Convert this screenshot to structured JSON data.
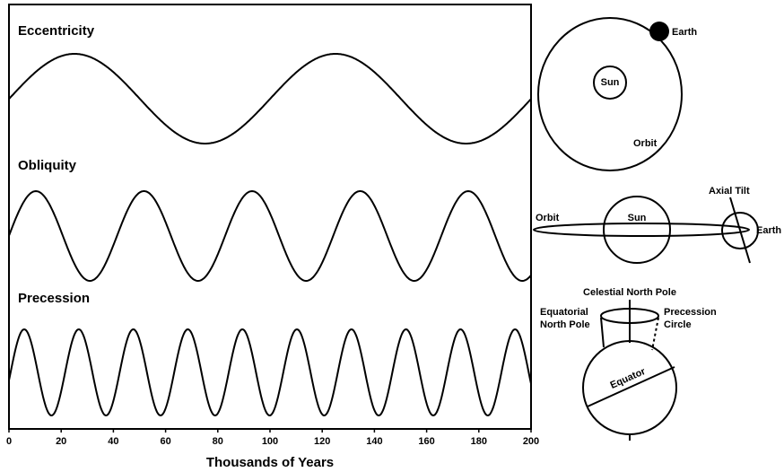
{
  "axis": {
    "range": [
      0,
      200
    ],
    "ticks": [
      0,
      20,
      40,
      60,
      80,
      100,
      120,
      140,
      160,
      180,
      200
    ],
    "label": "Thousands of Years"
  },
  "curves": [
    {
      "label": "Eccentricity"
    },
    {
      "label": "Obliquity"
    },
    {
      "label": "Precession"
    }
  ],
  "orbit_diagram": {
    "earth": "Earth",
    "sun": "Sun",
    "orbit": "Orbit"
  },
  "side_diagram": {
    "orbit": "Orbit",
    "sun": "Sun",
    "axial_tilt": "Axial Tilt",
    "earth": "Earth"
  },
  "precession_diagram": {
    "celestial_pole": "Celestial North Pole",
    "equatorial_pole": [
      "Equatorial",
      "North Pole"
    ],
    "precession_circle": [
      "Precession",
      "Circle"
    ],
    "equator": "Equator"
  }
}
